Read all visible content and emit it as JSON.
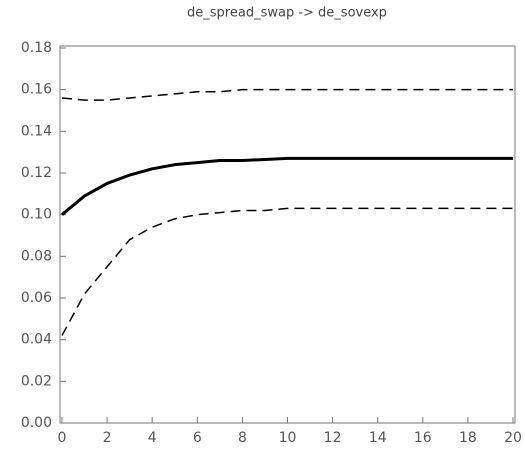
{
  "chart_data": {
    "type": "line",
    "title": "de_spread_swap -> de_sovexp",
    "x": [
      0,
      1,
      2,
      3,
      4,
      5,
      6,
      7,
      8,
      9,
      10,
      11,
      12,
      13,
      14,
      15,
      16,
      17,
      18,
      19,
      20
    ],
    "series": [
      {
        "color": "#000000",
        "style": "solid",
        "width": 3,
        "values": [
          0.1,
          0.109,
          0.115,
          0.119,
          0.122,
          0.124,
          0.125,
          0.126,
          0.126,
          0.1265,
          0.127,
          0.127,
          0.127,
          0.127,
          0.127,
          0.127,
          0.127,
          0.127,
          0.127,
          0.127,
          0.127
        ]
      },
      {
        "color": "#000000",
        "style": "dashed",
        "width": 1.5,
        "values": [
          0.156,
          0.155,
          0.155,
          0.156,
          0.157,
          0.158,
          0.159,
          0.159,
          0.16,
          0.16,
          0.16,
          0.16,
          0.16,
          0.16,
          0.16,
          0.16,
          0.16,
          0.16,
          0.16,
          0.16,
          0.16
        ]
      },
      {
        "color": "#000000",
        "style": "dashed",
        "width": 1.5,
        "values": [
          0.042,
          0.062,
          0.075,
          0.088,
          0.094,
          0.098,
          0.1,
          0.101,
          0.102,
          0.102,
          0.103,
          0.103,
          0.103,
          0.103,
          0.103,
          0.103,
          0.103,
          0.103,
          0.103,
          0.103,
          0.103
        ]
      }
    ],
    "xlim": [
      0,
      20
    ],
    "xticks": [
      0,
      2,
      4,
      6,
      8,
      10,
      12,
      14,
      16,
      18,
      20
    ],
    "ylim": [
      0,
      0.18
    ],
    "yticks": [
      {
        "value": 0,
        "label": "0.00"
      },
      {
        "value": 0.02,
        "label": "0.02"
      },
      {
        "value": 0.04,
        "label": "0.04"
      },
      {
        "value": 0.06,
        "label": "0.06"
      },
      {
        "value": 0.08,
        "label": "0.08"
      },
      {
        "value": 0.1,
        "label": "0.10"
      },
      {
        "value": 0.12,
        "label": "0.12"
      },
      {
        "value": 0.14,
        "label": "0.14"
      },
      {
        "value": 0.16,
        "label": "0.16"
      },
      {
        "value": 0.18,
        "label": "0.18"
      }
    ],
    "grid": false
  }
}
